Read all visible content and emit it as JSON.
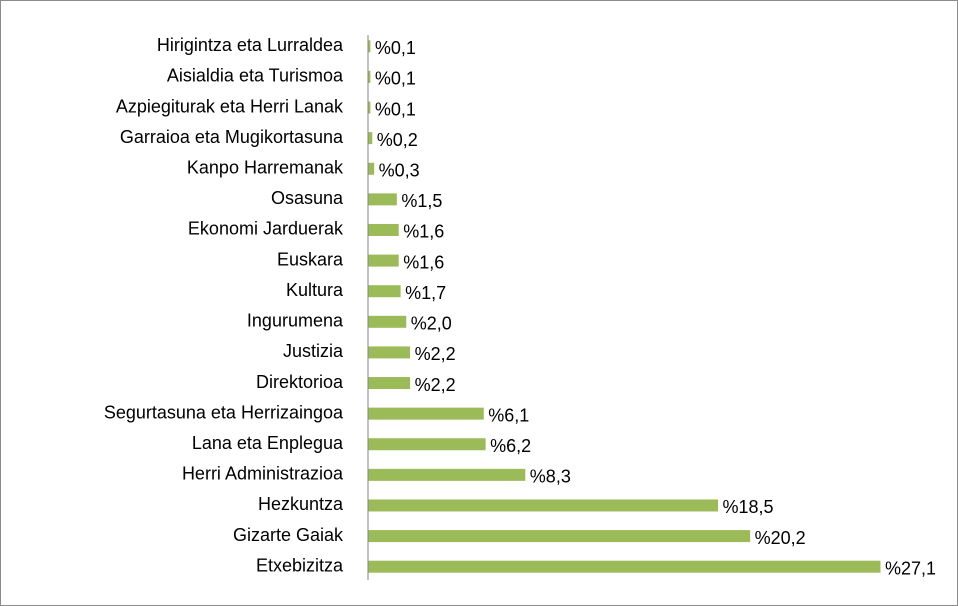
{
  "chart_data": {
    "type": "bar",
    "orientation": "horizontal",
    "color": "#9bbb59",
    "categories": [
      "Hirigintza eta Lurraldea",
      "Aisialdia eta Turismoa",
      "Azpiegiturak eta Herri Lanak",
      "Garraioa eta Mugikortasuna",
      "Kanpo Harremanak",
      "Osasuna",
      "Ekonomi Jarduerak",
      "Euskara",
      "Kultura",
      "Ingurumena",
      "Justizia",
      "Direktorioa",
      "Segurtasuna eta Herrizaingoa",
      "Lana eta Enplegua",
      "Herri Administrazioa",
      "Hezkuntza",
      "Gizarte Gaiak",
      "Etxebizitza"
    ],
    "values": [
      0.1,
      0.1,
      0.1,
      0.2,
      0.3,
      1.5,
      1.6,
      1.6,
      1.7,
      2.0,
      2.2,
      2.2,
      6.1,
      6.2,
      8.3,
      18.5,
      20.2,
      27.1
    ],
    "value_labels": [
      "%0,1",
      "%0,1",
      "%0,1",
      "%0,2",
      "%0,3",
      "%1,5",
      "%1,6",
      "%1,6",
      "%1,7",
      "%2,0",
      "%2,2",
      "%2,2",
      "%6,1",
      "%6,2",
      "%8,3",
      "%18,5",
      "%20,2",
      "%27,1"
    ]
  }
}
